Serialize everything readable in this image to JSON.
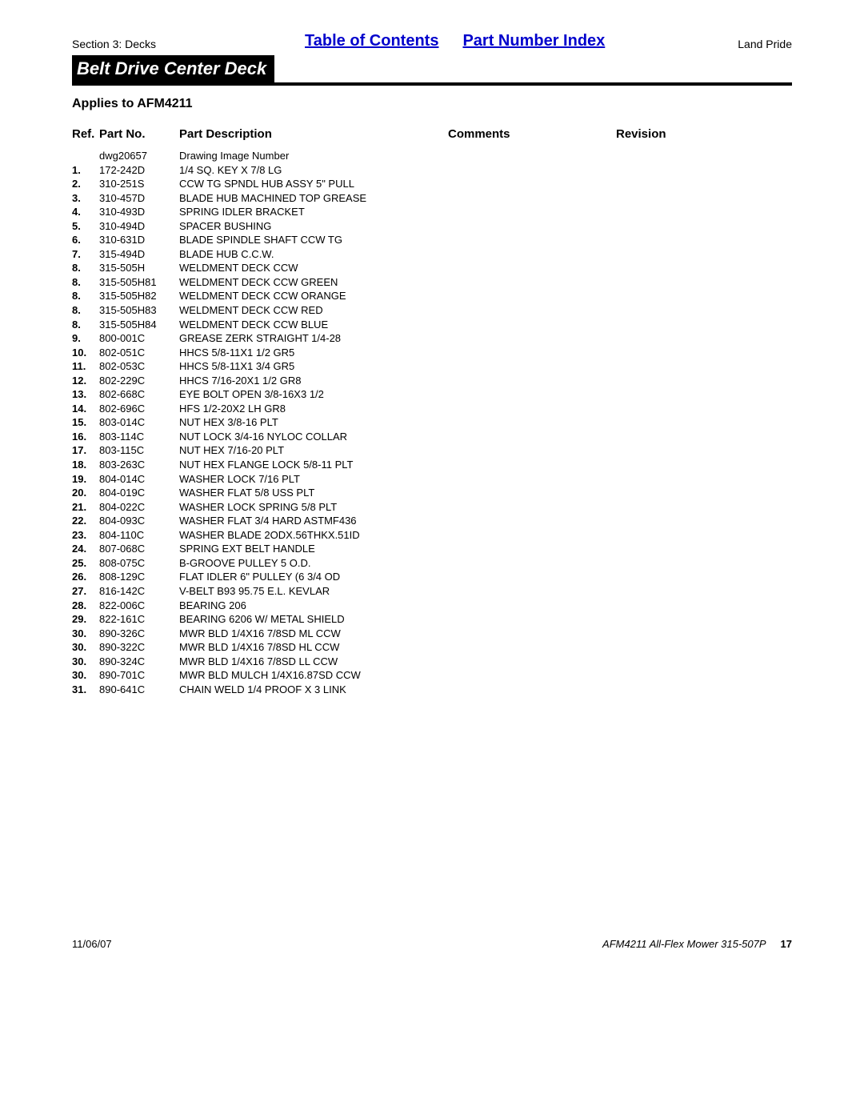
{
  "header": {
    "section_label": "Section 3: Decks",
    "toc_link": "Table of Contents",
    "pni_link": "Part Number Index",
    "brand": "Land Pride",
    "title": "Belt Drive Center Deck",
    "applies_to": "Applies to AFM4211"
  },
  "columns": {
    "ref": "Ref.",
    "part_no": "Part No.",
    "part_description": "Part Description",
    "comments": "Comments",
    "revision": "Revision"
  },
  "rows": [
    {
      "ref": "",
      "part_no": "dwg20657",
      "desc": "Drawing Image Number"
    },
    {
      "ref": "1.",
      "part_no": "172-242D",
      "desc": "1/4 SQ. KEY X 7/8 LG"
    },
    {
      "ref": "2.",
      "part_no": "310-251S",
      "desc": "CCW TG SPNDL HUB ASSY 5\" PULL"
    },
    {
      "ref": "3.",
      "part_no": "310-457D",
      "desc": "BLADE HUB MACHINED TOP GREASE"
    },
    {
      "ref": "4.",
      "part_no": "310-493D",
      "desc": "SPRING IDLER BRACKET"
    },
    {
      "ref": "5.",
      "part_no": "310-494D",
      "desc": "SPACER BUSHING"
    },
    {
      "ref": "6.",
      "part_no": "310-631D",
      "desc": "BLADE SPINDLE SHAFT CCW TG"
    },
    {
      "ref": "7.",
      "part_no": "315-494D",
      "desc": "BLADE HUB C.C.W."
    },
    {
      "ref": "8.",
      "part_no": "315-505H",
      "desc": "WELDMENT DECK CCW"
    },
    {
      "ref": "8.",
      "part_no": "315-505H81",
      "desc": "WELDMENT DECK CCW GREEN"
    },
    {
      "ref": "8.",
      "part_no": "315-505H82",
      "desc": "WELDMENT DECK CCW ORANGE"
    },
    {
      "ref": "8.",
      "part_no": "315-505H83",
      "desc": "WELDMENT DECK CCW RED"
    },
    {
      "ref": "8.",
      "part_no": "315-505H84",
      "desc": "WELDMENT DECK CCW BLUE"
    },
    {
      "ref": "9.",
      "part_no": "800-001C",
      "desc": "GREASE ZERK STRAIGHT 1/4-28"
    },
    {
      "ref": "10.",
      "part_no": "802-051C",
      "desc": "HHCS 5/8-11X1 1/2 GR5"
    },
    {
      "ref": "11.",
      "part_no": "802-053C",
      "desc": "HHCS 5/8-11X1 3/4 GR5"
    },
    {
      "ref": "12.",
      "part_no": "802-229C",
      "desc": "HHCS 7/16-20X1 1/2 GR8"
    },
    {
      "ref": "13.",
      "part_no": "802-668C",
      "desc": "EYE BOLT OPEN 3/8-16X3 1/2"
    },
    {
      "ref": "14.",
      "part_no": "802-696C",
      "desc": "HFS 1/2-20X2 LH GR8"
    },
    {
      "ref": "15.",
      "part_no": "803-014C",
      "desc": "NUT HEX 3/8-16 PLT"
    },
    {
      "ref": "16.",
      "part_no": "803-114C",
      "desc": "NUT LOCK 3/4-16 NYLOC COLLAR"
    },
    {
      "ref": "17.",
      "part_no": "803-115C",
      "desc": "NUT HEX 7/16-20 PLT"
    },
    {
      "ref": "18.",
      "part_no": "803-263C",
      "desc": "NUT HEX FLANGE LOCK 5/8-11 PLT"
    },
    {
      "ref": "19.",
      "part_no": "804-014C",
      "desc": "WASHER LOCK 7/16 PLT"
    },
    {
      "ref": "20.",
      "part_no": "804-019C",
      "desc": "WASHER FLAT 5/8 USS PLT"
    },
    {
      "ref": "21.",
      "part_no": "804-022C",
      "desc": "WASHER LOCK SPRING 5/8 PLT"
    },
    {
      "ref": "22.",
      "part_no": "804-093C",
      "desc": "WASHER FLAT 3/4 HARD ASTMF436"
    },
    {
      "ref": "23.",
      "part_no": "804-110C",
      "desc": "WASHER BLADE 2ODX.56THKX.51ID"
    },
    {
      "ref": "24.",
      "part_no": "807-068C",
      "desc": "SPRING EXT BELT HANDLE"
    },
    {
      "ref": "25.",
      "part_no": "808-075C",
      "desc": "B-GROOVE PULLEY 5 O.D."
    },
    {
      "ref": "26.",
      "part_no": "808-129C",
      "desc": "FLAT IDLER 6\" PULLEY (6 3/4 OD"
    },
    {
      "ref": "27.",
      "part_no": "816-142C",
      "desc": "V-BELT B93 95.75 E.L. KEVLAR"
    },
    {
      "ref": "28.",
      "part_no": "822-006C",
      "desc": "BEARING 206"
    },
    {
      "ref": "29.",
      "part_no": "822-161C",
      "desc": "BEARING 6206 W/ METAL SHIELD"
    },
    {
      "ref": "30.",
      "part_no": "890-326C",
      "desc": "MWR BLD 1/4X16 7/8SD ML CCW"
    },
    {
      "ref": "30.",
      "part_no": "890-322C",
      "desc": "MWR BLD 1/4X16 7/8SD HL CCW"
    },
    {
      "ref": "30.",
      "part_no": "890-324C",
      "desc": "MWR BLD 1/4X16 7/8SD LL CCW"
    },
    {
      "ref": "30.",
      "part_no": "890-701C",
      "desc": "MWR BLD MULCH 1/4X16.87SD CCW"
    },
    {
      "ref": "31.",
      "part_no": "890-641C",
      "desc": "CHAIN WELD 1/4 PROOF X 3 LINK"
    }
  ],
  "footer": {
    "date": "11/06/07",
    "doc_title": "AFM4211 All-Flex Mower 315-507P",
    "page_number": "17"
  }
}
